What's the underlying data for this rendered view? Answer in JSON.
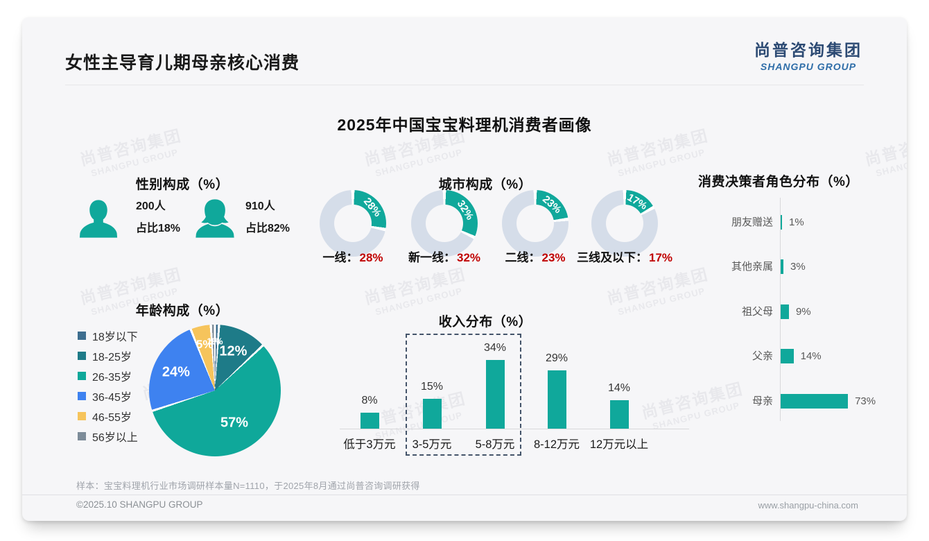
{
  "page": {
    "title": "女性主导育儿期母亲核心消费",
    "logo_cn": "尚普咨询集团",
    "logo_en": "SHANGPU GROUP",
    "main_title": "2025年中国宝宝料理机消费者画像",
    "footnote": "样本：宝宝料理机行业市场调研样本量N=1110，于2025年8月通过尚普咨询调研获得",
    "copyright": "©2025.10 SHANGPU GROUP",
    "website": "www.shangpu-china.com",
    "watermark": {
      "line1": "尚普咨询集团",
      "line2": "SHANGPU GROUP"
    }
  },
  "colors": {
    "teal": "#10a89b",
    "donut_track": "#d5dde9",
    "red": "#c00000",
    "dash_box": "#44546a",
    "logo_navy": "#2c4a73",
    "logo_blue": "#2e6da8"
  },
  "chart_data": [
    {
      "type": "pictogram",
      "title": "性别构成（%）",
      "items": [
        {
          "gender": "男",
          "icon": "male-icon",
          "count": "200人",
          "share": "占比18%"
        },
        {
          "gender": "女",
          "icon": "female-icon",
          "count": "910人",
          "share": "占比82%"
        }
      ]
    },
    {
      "type": "donut",
      "title": "城市构成（%）",
      "items": [
        {
          "label": "一线",
          "value": 28
        },
        {
          "label": "新一线",
          "value": 32
        },
        {
          "label": "二线",
          "value": 23
        },
        {
          "label": "三线及以下",
          "value": 17
        }
      ],
      "segment_color": "#10a89b",
      "track_color": "#d5dde9",
      "value_color": "#c00000"
    },
    {
      "type": "bar-horizontal",
      "title": "消费决策者角色分布（%）",
      "categories": [
        "朋友赠送",
        "其他亲属",
        "祖父母",
        "父亲",
        "母亲"
      ],
      "values": [
        1,
        3,
        9,
        14,
        73
      ],
      "bar_color": "#10a89b",
      "xlim": [
        0,
        80
      ]
    },
    {
      "type": "pie",
      "title": "年龄构成（%）",
      "categories": [
        "18岁以下",
        "18-25岁",
        "26-35岁",
        "36-45岁",
        "46-55岁",
        "56岁以上"
      ],
      "values": [
        1,
        12,
        57,
        24,
        5,
        1
      ],
      "colors": [
        "#3d6e8f",
        "#1e7b88",
        "#0fa89a",
        "#3e82f0",
        "#f6c45c",
        "#7d8c99"
      ],
      "legend_position": "left",
      "start_angle_deg": 0
    },
    {
      "type": "bar",
      "title": "收入分布（%）",
      "categories": [
        "低于3万元",
        "3-5万元",
        "5-8万元",
        "8-12万元",
        "12万元以上"
      ],
      "values": [
        8,
        15,
        34,
        29,
        14
      ],
      "bar_color": "#10a89b",
      "ylim": [
        0,
        40
      ],
      "highlight": {
        "categories": [
          "3-5万元",
          "5-8万元"
        ],
        "style": "dashed-box",
        "color": "#44546a"
      }
    }
  ]
}
